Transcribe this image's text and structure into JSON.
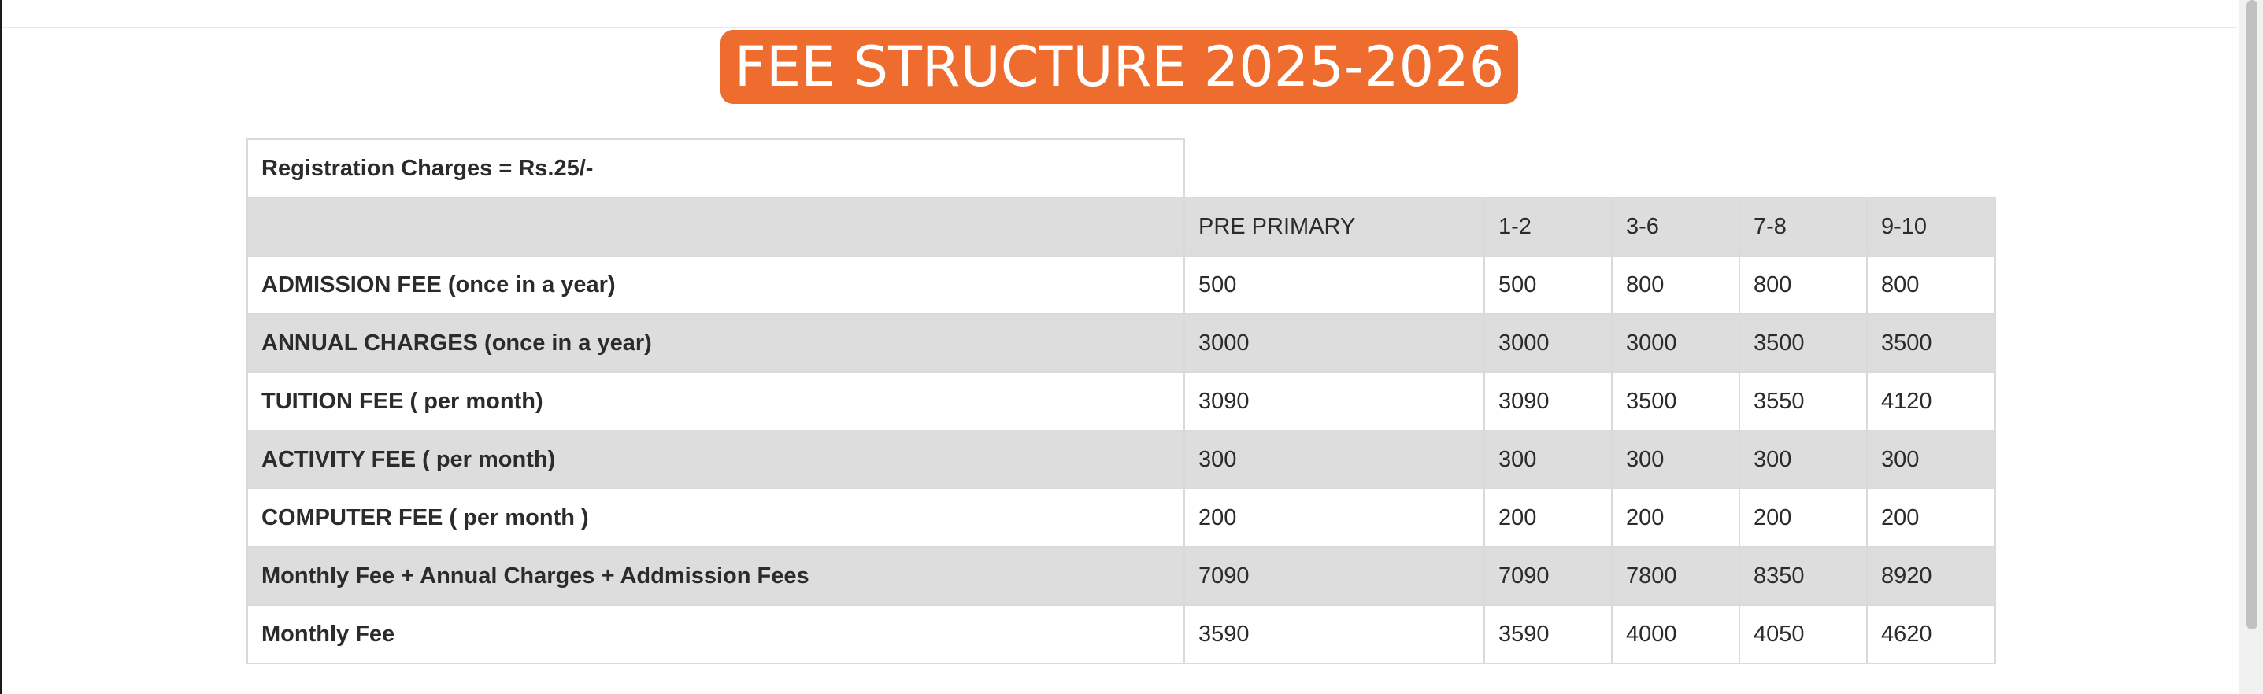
{
  "title": "FEE STRUCTURE 2025-2026",
  "registration": "Registration Charges = Rs.25/-",
  "columns": [
    "",
    "PRE PRIMARY",
    "1-2",
    "3-6",
    "7-8",
    "9-10"
  ],
  "rows": [
    {
      "label": "ADMISSION FEE (once in a year)",
      "values": [
        "500",
        "500",
        "800",
        "800",
        "800"
      ]
    },
    {
      "label": "ANNUAL CHARGES (once in a year)",
      "values": [
        "3000",
        "3000",
        "3000",
        "3500",
        "3500"
      ]
    },
    {
      "label": "TUITION FEE ( per month)",
      "values": [
        "3090",
        "3090",
        "3500",
        "3550",
        "4120"
      ]
    },
    {
      "label": "ACTIVITY FEE ( per month)",
      "values": [
        "300",
        "300",
        "300",
        "300",
        "300"
      ]
    },
    {
      "label": "COMPUTER FEE ( per month )",
      "values": [
        "200",
        "200",
        "200",
        "200",
        "200"
      ]
    },
    {
      "label": "Monthly Fee + Annual Charges + Addmission Fees",
      "values": [
        "7090",
        "7090",
        "7800",
        "8350",
        "8920"
      ]
    },
    {
      "label": "Monthly Fee",
      "values": [
        "3590",
        "3590",
        "4000",
        "4050",
        "4620"
      ]
    }
  ],
  "colors": {
    "title_bg": "#ee6c2d",
    "shaded_row": "#dddddd",
    "border": "#dadada"
  }
}
